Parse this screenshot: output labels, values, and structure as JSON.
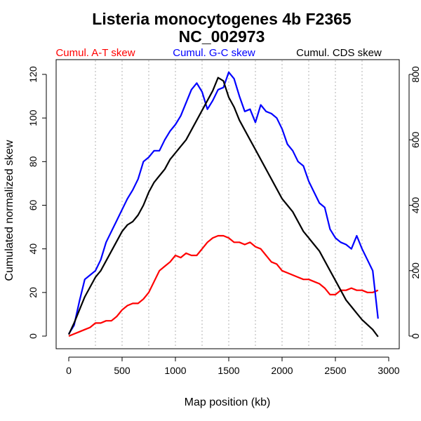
{
  "chart_data": {
    "type": "line",
    "title": "Listeria monocytogenes 4b F2365",
    "subtitle": "NC_002973",
    "xlabel": "Map position (kb)",
    "ylabel": "Cumulated normalized skew",
    "xlim": [
      0,
      3000
    ],
    "ylim_left": [
      0,
      120
    ],
    "ylim_right": [
      0,
      800
    ],
    "x_ticks": [
      0,
      500,
      1000,
      1500,
      2000,
      2500,
      3000
    ],
    "y_ticks_left": [
      0,
      20,
      40,
      60,
      80,
      100,
      120
    ],
    "y_ticks_right": [
      0,
      200,
      400,
      600,
      800
    ],
    "grid": "vertical dotted lines every 250 kb",
    "legend_placement": "top, above plot",
    "series": [
      {
        "name": "Cumul. A-T skew",
        "color": "#ff0000",
        "axis": "left",
        "x": [
          0,
          50,
          100,
          150,
          200,
          250,
          300,
          350,
          400,
          450,
          500,
          550,
          600,
          650,
          700,
          750,
          800,
          850,
          900,
          950,
          1000,
          1050,
          1100,
          1150,
          1200,
          1250,
          1300,
          1350,
          1400,
          1450,
          1500,
          1550,
          1600,
          1650,
          1700,
          1750,
          1800,
          1850,
          1900,
          1950,
          2000,
          2050,
          2100,
          2150,
          2200,
          2250,
          2300,
          2350,
          2400,
          2450,
          2500,
          2550,
          2600,
          2650,
          2700,
          2750,
          2800,
          2850,
          2900
        ],
        "y": [
          0,
          1,
          2,
          3,
          4,
          6,
          6,
          7,
          7,
          9,
          12,
          14,
          15,
          15,
          17,
          20,
          25,
          30,
          32,
          34,
          37,
          36,
          38,
          37,
          37,
          40,
          43,
          45,
          46,
          46,
          45,
          43,
          43,
          42,
          43,
          41,
          40,
          37,
          34,
          33,
          30,
          29,
          28,
          27,
          26,
          26,
          25,
          24,
          22,
          19,
          19,
          21,
          21,
          22,
          21,
          21,
          20,
          20,
          21
        ]
      },
      {
        "name": "Cumul. G-C skew",
        "color": "#0000ff",
        "axis": "left",
        "x": [
          0,
          50,
          100,
          150,
          200,
          250,
          300,
          350,
          400,
          450,
          500,
          550,
          600,
          650,
          700,
          750,
          800,
          850,
          900,
          950,
          1000,
          1050,
          1100,
          1150,
          1200,
          1250,
          1300,
          1350,
          1400,
          1450,
          1500,
          1550,
          1600,
          1650,
          1700,
          1750,
          1800,
          1850,
          1900,
          1950,
          2000,
          2050,
          2100,
          2150,
          2200,
          2250,
          2300,
          2350,
          2400,
          2450,
          2500,
          2550,
          2600,
          2650,
          2700,
          2750,
          2800,
          2850,
          2900
        ],
        "y": [
          1,
          5,
          16,
          26,
          28,
          30,
          35,
          43,
          48,
          53,
          58,
          63,
          67,
          72,
          80,
          82,
          85,
          85,
          90,
          94,
          97,
          101,
          107,
          113,
          116,
          112,
          104,
          108,
          113,
          114,
          121,
          118,
          110,
          103,
          104,
          98,
          106,
          103,
          102,
          100,
          95,
          88,
          85,
          80,
          78,
          71,
          66,
          61,
          59,
          49,
          45,
          43,
          42,
          40,
          46,
          40,
          35,
          30,
          8
        ]
      },
      {
        "name": "Cumul. CDS skew",
        "color": "#000000",
        "axis": "right",
        "x": [
          0,
          50,
          100,
          150,
          200,
          250,
          300,
          350,
          400,
          450,
          500,
          550,
          600,
          650,
          700,
          750,
          800,
          850,
          900,
          950,
          1000,
          1050,
          1100,
          1150,
          1200,
          1250,
          1300,
          1350,
          1400,
          1450,
          1500,
          1550,
          1600,
          1650,
          1700,
          1750,
          1800,
          1850,
          1900,
          1950,
          2000,
          2050,
          2100,
          2150,
          2200,
          2250,
          2300,
          2350,
          2400,
          2450,
          2500,
          2550,
          2600,
          2650,
          2700,
          2750,
          2800,
          2850,
          2900
        ],
        "y": [
          5,
          40,
          80,
          120,
          150,
          180,
          200,
          230,
          260,
          290,
          320,
          340,
          350,
          370,
          400,
          440,
          470,
          490,
          510,
          540,
          560,
          580,
          600,
          630,
          660,
          690,
          720,
          750,
          790,
          780,
          730,
          700,
          660,
          630,
          600,
          570,
          540,
          510,
          480,
          450,
          420,
          400,
          380,
          350,
          320,
          300,
          280,
          260,
          230,
          200,
          170,
          140,
          110,
          90,
          70,
          50,
          35,
          20,
          -2
        ]
      }
    ]
  }
}
